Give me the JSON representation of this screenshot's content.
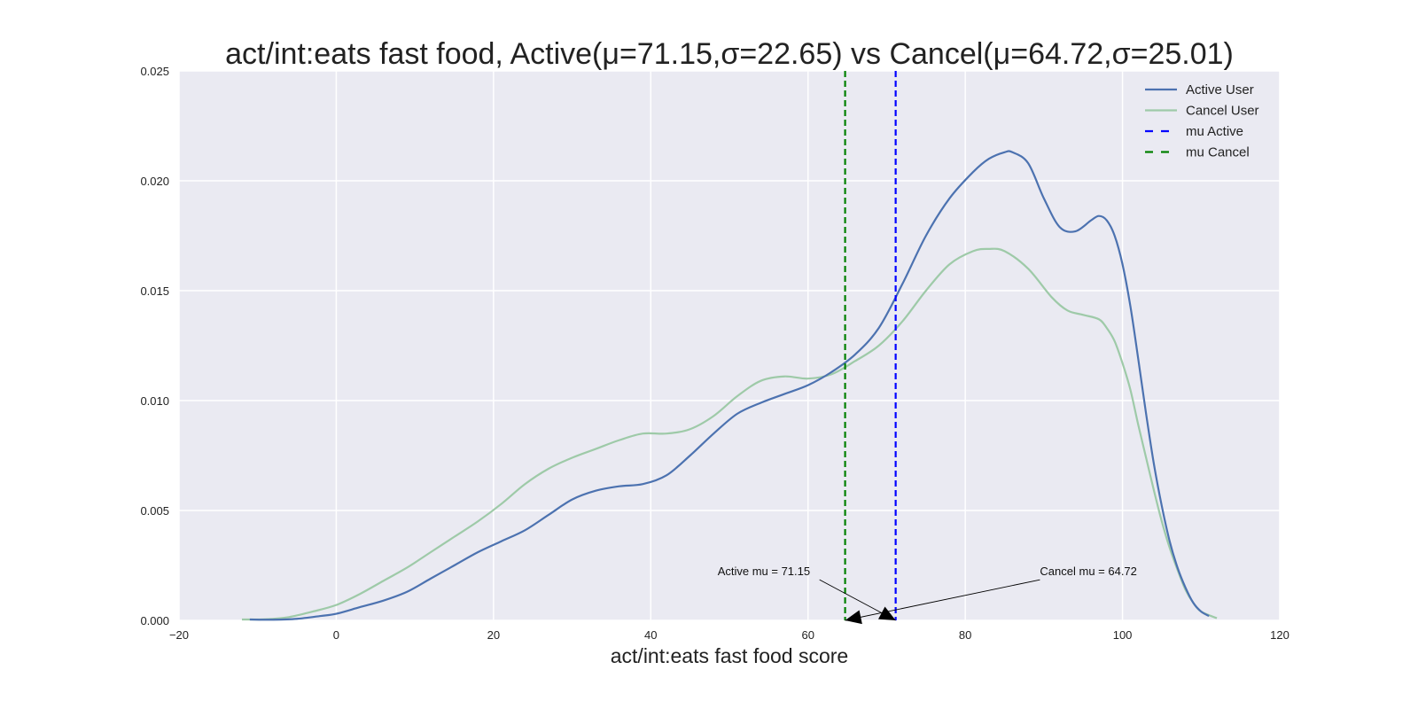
{
  "chart_data": {
    "type": "line",
    "title": "act/int:eats fast food, Active(μ=71.15,σ=22.65) vs Cancel(μ=64.72,σ=25.01)",
    "xlabel": "act/int:eats fast food score",
    "ylabel": "",
    "xlim": [
      -20,
      120
    ],
    "ylim": [
      0,
      0.025
    ],
    "xticks": [
      -20,
      0,
      20,
      40,
      60,
      80,
      100,
      120
    ],
    "xtick_labels": [
      "−20",
      "0",
      "20",
      "40",
      "60",
      "80",
      "100",
      "120"
    ],
    "yticks": [
      0,
      0.005,
      0.01,
      0.015,
      0.02,
      0.025
    ],
    "ytick_labels": [
      "0.000",
      "0.005",
      "0.010",
      "0.015",
      "0.020",
      "0.025"
    ],
    "grid": true,
    "legend_position": "top-right",
    "series": [
      {
        "name": "Active User",
        "color": "#4c72b0",
        "style": "solid",
        "x": [
          -11,
          -8,
          -5,
          -2,
          0,
          3,
          6,
          9,
          12,
          15,
          18,
          21,
          24,
          27,
          30,
          33,
          36,
          39,
          42,
          45,
          48,
          51,
          54,
          57,
          60,
          63,
          66,
          69,
          72,
          75,
          78,
          81,
          83,
          85,
          86,
          88,
          90,
          92,
          94,
          96,
          97,
          98,
          99,
          100,
          101,
          102,
          103,
          104,
          105,
          106,
          107,
          108,
          109,
          110,
          111
        ],
        "y": [
          4e-05,
          3e-05,
          7e-05,
          0.0002,
          0.0003,
          0.0006,
          0.0009,
          0.0013,
          0.0019,
          0.0025,
          0.0031,
          0.0036,
          0.0041,
          0.0048,
          0.0055,
          0.0059,
          0.0061,
          0.0062,
          0.0066,
          0.0075,
          0.0085,
          0.0094,
          0.0099,
          0.0103,
          0.0107,
          0.0113,
          0.0121,
          0.0133,
          0.0153,
          0.0175,
          0.0192,
          0.0204,
          0.021,
          0.0213,
          0.0213,
          0.0208,
          0.0192,
          0.0179,
          0.0177,
          0.0182,
          0.0184,
          0.0182,
          0.0175,
          0.0162,
          0.0143,
          0.0119,
          0.0094,
          0.0071,
          0.0052,
          0.0036,
          0.0024,
          0.0015,
          0.0008,
          0.0004,
          0.0002
        ]
      },
      {
        "name": "Cancel User",
        "color": "#9ecaa8",
        "style": "solid",
        "x": [
          -12,
          -9,
          -6,
          -3,
          0,
          3,
          6,
          9,
          12,
          15,
          18,
          21,
          24,
          27,
          30,
          33,
          36,
          39,
          42,
          45,
          48,
          51,
          54,
          57,
          60,
          63,
          66,
          69,
          72,
          75,
          78,
          81,
          83,
          85,
          88,
          91,
          93,
          95,
          97,
          98,
          99,
          100,
          101,
          102,
          103,
          104,
          105,
          106,
          107,
          108,
          109,
          110,
          112
        ],
        "y": [
          4e-05,
          5e-05,
          0.00015,
          0.0004,
          0.0007,
          0.0012,
          0.0018,
          0.0024,
          0.0031,
          0.0038,
          0.0045,
          0.0053,
          0.0062,
          0.0069,
          0.0074,
          0.0078,
          0.0082,
          0.0085,
          0.0085,
          0.0087,
          0.0093,
          0.0102,
          0.0109,
          0.0111,
          0.011,
          0.0112,
          0.0118,
          0.0125,
          0.0136,
          0.015,
          0.0162,
          0.0168,
          0.0169,
          0.0168,
          0.016,
          0.0147,
          0.0141,
          0.0139,
          0.0137,
          0.0133,
          0.0127,
          0.0117,
          0.0105,
          0.0089,
          0.0074,
          0.0059,
          0.0045,
          0.0033,
          0.0023,
          0.0014,
          0.0008,
          0.0004,
          0.0001
        ]
      }
    ],
    "vlines": [
      {
        "name": "mu Active",
        "x": 71.15,
        "color": "#0000ff",
        "style": "dashed"
      },
      {
        "name": "mu Cancel",
        "x": 64.72,
        "color": "#008000",
        "style": "dashed"
      }
    ],
    "annotations": [
      {
        "text": "Active mu = 71.15",
        "text_x": 48.5,
        "text_y": 0.00205,
        "point_x": 71.15,
        "point_y": 0
      },
      {
        "text": "Cancel mu = 64.72",
        "text_x": 89.5,
        "text_y": 0.00205,
        "point_x": 64.72,
        "point_y": 0
      }
    ],
    "legend": [
      {
        "label": "Active User",
        "color": "#4c72b0",
        "style": "solid"
      },
      {
        "label": "Cancel User",
        "color": "#9ecaa8",
        "style": "solid"
      },
      {
        "label": "mu Active",
        "color": "#0000ff",
        "style": "dashed"
      },
      {
        "label": "mu Cancel",
        "color": "#008000",
        "style": "dashed"
      }
    ],
    "colors": {
      "plot_background": "#eaeaf2",
      "grid": "#ffffff"
    }
  }
}
